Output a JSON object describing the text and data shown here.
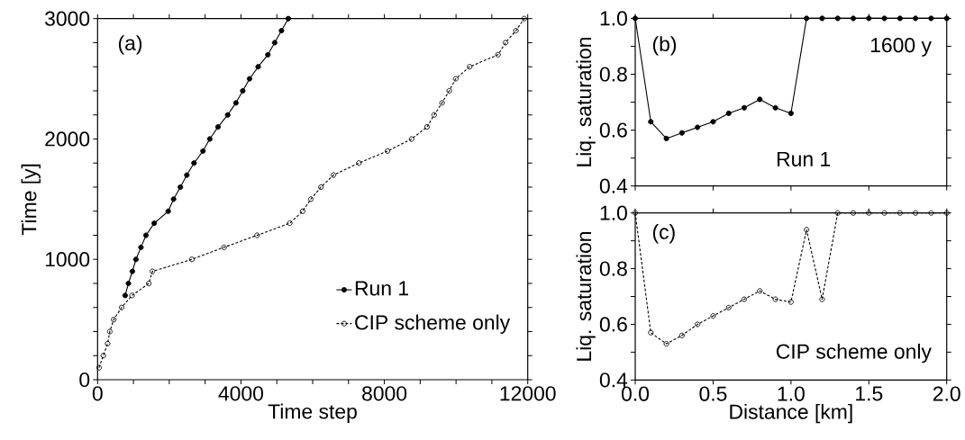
{
  "chart_data": [
    {
      "type": "line",
      "xlabel": "Time step",
      "ylabel": "Time [y]",
      "xlim": [
        0,
        12000
      ],
      "ylim": [
        0,
        3000
      ],
      "xticks": [
        0,
        {
          "value": 1000,
          "label": null
        },
        {
          "value": 2000,
          "label": null
        },
        {
          "value": 3000,
          "label": null
        },
        4000,
        {
          "value": 5000,
          "label": null
        },
        {
          "value": 6000,
          "label": null
        },
        {
          "value": 7000,
          "label": null
        },
        8000,
        {
          "value": 9000,
          "label": null
        },
        {
          "value": 10000,
          "label": null
        },
        {
          "value": 11000,
          "label": null
        },
        12000
      ],
      "yticks": [
        0,
        {
          "value": 200,
          "label": null
        },
        {
          "value": 400,
          "label": null
        },
        {
          "value": 600,
          "label": null
        },
        {
          "value": 800,
          "label": null
        },
        1000,
        {
          "value": 1200,
          "label": null
        },
        {
          "value": 1400,
          "label": null
        },
        {
          "value": 1600,
          "label": null
        },
        {
          "value": 1800,
          "label": null
        },
        2000,
        {
          "value": 2200,
          "label": null
        },
        {
          "value": 2400,
          "label": null
        },
        {
          "value": 2600,
          "label": null
        },
        {
          "value": 2800,
          "label": null
        },
        3000
      ],
      "legend": "bottom right",
      "grid": false,
      "annotations": [
        "(a)"
      ],
      "series": [
        {
          "name": "Run 1",
          "color": "#000000",
          "marker": "circle",
          "line_style": "solid",
          "x": [
            770,
            860,
            970,
            1070,
            1210,
            1350,
            1580,
            1970,
            2120,
            2310,
            2490,
            2690,
            2940,
            3130,
            3360,
            3630,
            3860,
            4050,
            4240,
            4480,
            4750,
            4940,
            5130,
            5320
          ],
          "values": [
            700,
            800,
            900,
            1000,
            1100,
            1200,
            1300,
            1400,
            1500,
            1600,
            1700,
            1800,
            1900,
            2000,
            2100,
            2200,
            2300,
            2400,
            2500,
            2600,
            2700,
            2800,
            2900,
            3000
          ]
        },
        {
          "name": "CIP scheme only",
          "color": "#000000",
          "marker": "open circle",
          "line_style": "dashed",
          "x": [
            40,
            160,
            280,
            340,
            450,
            670,
            960,
            1430,
            1530,
            2630,
            3530,
            4450,
            5360,
            5720,
            5950,
            6230,
            6580,
            7290,
            8090,
            8760,
            9190,
            9390,
            9610,
            9810,
            9990,
            10380,
            11170,
            11380,
            11670,
            11900
          ],
          "values": [
            100,
            200,
            300,
            400,
            500,
            600,
            700,
            800,
            900,
            1000,
            1100,
            1200,
            1300,
            1400,
            1500,
            1600,
            1700,
            1800,
            1900,
            2000,
            2100,
            2200,
            2300,
            2400,
            2500,
            2600,
            2700,
            2800,
            2900,
            3000
          ]
        }
      ]
    },
    {
      "type": "line",
      "ylabel": "Liq. saturation",
      "xlim": [
        0,
        2
      ],
      "ylim": [
        0.4,
        1
      ],
      "tick_labels": "y",
      "xticks": [
        {
          "value": 0,
          "label": null
        },
        {
          "value": 0.5,
          "label": null
        },
        {
          "value": 1,
          "label": null
        },
        {
          "value": 1.5,
          "label": null
        },
        {
          "value": 2,
          "label": null
        }
      ],
      "yticks": [
        0.4,
        {
          "value": 0.5,
          "label": null
        },
        0.6,
        {
          "value": 0.7,
          "label": null
        },
        0.8,
        {
          "value": 0.9,
          "label": null
        },
        {
          "value": 1,
          "label": "1.0"
        }
      ],
      "annotations": [
        "(b)",
        "1600 y",
        "Run 1"
      ],
      "x": [
        0,
        0.1,
        0.2,
        0.3,
        0.4,
        0.5,
        0.6,
        0.7,
        0.8,
        0.9,
        1.0,
        1.1,
        1.2,
        1.3,
        1.4,
        1.5,
        1.6,
        1.7,
        1.8,
        1.9,
        2.0
      ],
      "series": [
        {
          "color": "#000000",
          "marker": "circle",
          "line_style": "solid",
          "values": [
            1.0,
            0.63,
            0.57,
            0.59,
            0.61,
            0.63,
            0.66,
            0.68,
            0.71,
            0.68,
            0.66,
            1.0,
            1.0,
            1.0,
            1.0,
            1.0,
            1.0,
            1.0,
            1.0,
            1.0,
            1.0
          ]
        }
      ]
    },
    {
      "type": "line",
      "ylabel": "Liq. saturation",
      "xlabel": "Distance [km]",
      "xlim": [
        0,
        2
      ],
      "ylim": [
        0.4,
        1
      ],
      "xticks": [
        {
          "value": 0,
          "label": "0.0"
        },
        0.5,
        {
          "value": 1,
          "label": "1.0"
        },
        1.5,
        {
          "value": 2,
          "label": "2.0"
        }
      ],
      "yticks": [
        0.4,
        {
          "value": 0.5,
          "label": null
        },
        0.6,
        {
          "value": 0.7,
          "label": null
        },
        0.8,
        {
          "value": 0.9,
          "label": null
        },
        {
          "value": 1,
          "label": "1.0"
        }
      ],
      "annotations": [
        "(c)",
        "CIP scheme only"
      ],
      "x": [
        0,
        0.1,
        0.2,
        0.3,
        0.4,
        0.5,
        0.6,
        0.7,
        0.8,
        0.9,
        1.0,
        1.1,
        1.2,
        1.3,
        1.4,
        1.5,
        1.6,
        1.7,
        1.8,
        1.9,
        2.0
      ],
      "series": [
        {
          "color": "#000000",
          "marker": "open circle",
          "line_style": "dashed",
          "values": [
            1.0,
            0.57,
            0.53,
            0.56,
            0.6,
            0.63,
            0.66,
            0.69,
            0.72,
            0.69,
            0.68,
            0.94,
            0.69,
            1.0,
            1.0,
            1.0,
            1.0,
            1.0,
            1.0,
            1.0,
            1.0
          ]
        }
      ]
    }
  ]
}
